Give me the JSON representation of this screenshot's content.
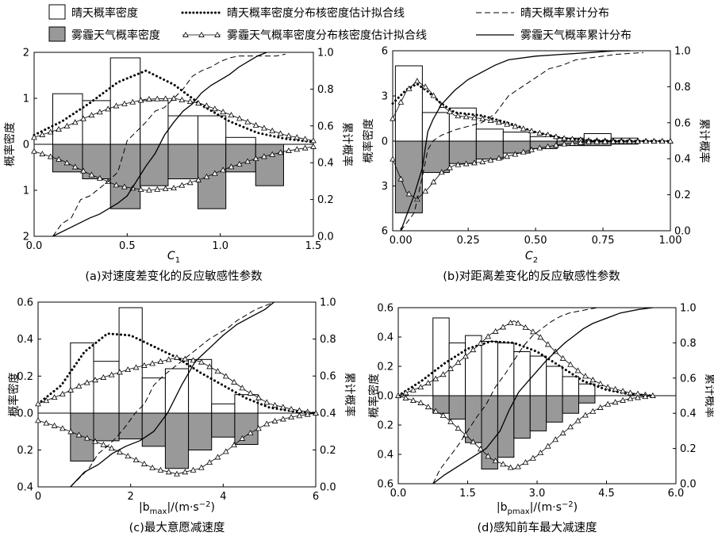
{
  "legend": {
    "items": [
      {
        "key": "clear_hist",
        "label": "晴天概率密度"
      },
      {
        "key": "clear_kde",
        "label": "晴天概率密度分布核密度估计拟合线"
      },
      {
        "key": "clear_cdf",
        "label": "晴天概率累计分布"
      },
      {
        "key": "haze_hist",
        "label": "雾霾天气概率密度"
      },
      {
        "key": "haze_kde",
        "label": "雾霾天气概率密度分布核密度估计拟合线"
      },
      {
        "key": "haze_cdf",
        "label": "雾霾天气概率累计分布"
      }
    ]
  },
  "colors": {
    "haze_fill": "#999999",
    "clear_fill": "#ffffff",
    "line": "#000000",
    "triangle_marker": "#000000"
  },
  "chart_data": [
    {
      "type": "bar",
      "caption": "(a)对速度差变化的反应敏感性参数",
      "xlabel_main": "C",
      "xlabel_sub": "1",
      "ylabel_left": "概率密度",
      "ylabel_right": "累计概率",
      "xlim": [
        0,
        1.5
      ],
      "xticks": [
        "0.0",
        "0.5",
        "1.0",
        "1.5"
      ],
      "xtick_vals": [
        0,
        0.5,
        1.0,
        1.5
      ],
      "ylim_top": 2,
      "ylim_bottom": 2,
      "ytick_labels": [
        "2",
        "1",
        "0",
        "1",
        "2"
      ],
      "ytick_vals": [
        2,
        1,
        0,
        -1,
        -2
      ],
      "right_ticks": [
        "0.0",
        "0.2",
        "0.4",
        "0.6",
        "0.8",
        "1.0"
      ],
      "bin_edges": [
        0.1,
        0.26,
        0.41,
        0.57,
        0.72,
        0.88,
        1.03,
        1.19,
        1.34
      ],
      "clear_density": [
        1.1,
        0.95,
        1.88,
        0.95,
        0.62,
        0.62,
        0.15,
        0.0
      ],
      "haze_density": [
        0.6,
        0.75,
        1.4,
        0.9,
        0.75,
        1.4,
        0.6,
        0.9
      ],
      "clear_kde": {
        "x": [
          0.0,
          0.15,
          0.3,
          0.45,
          0.6,
          0.75,
          0.9,
          1.05,
          1.2,
          1.35,
          1.5
        ],
        "y": [
          0.2,
          0.5,
          0.9,
          1.35,
          1.6,
          1.3,
          0.85,
          0.5,
          0.25,
          0.12,
          0.05
        ]
      },
      "haze_kde": {
        "x": [
          0.0,
          0.15,
          0.3,
          0.45,
          0.6,
          0.75,
          0.9,
          1.05,
          1.2,
          1.35,
          1.5
        ],
        "y": [
          0.12,
          0.25,
          0.5,
          0.9,
          1.0,
          1.0,
          0.85,
          0.6,
          0.3,
          0.2,
          0.1
        ]
      },
      "clear_haze_kde_upper": {
        "x": [
          0.0,
          0.15,
          0.3,
          0.45,
          0.6,
          0.75,
          0.9,
          1.05,
          1.2,
          1.35,
          1.5
        ],
        "y": [
          0.15,
          0.35,
          0.62,
          0.85,
          0.98,
          1.0,
          0.88,
          0.65,
          0.4,
          0.2,
          0.08
        ]
      },
      "haze_kde_lower": {
        "x": [
          0.0,
          0.15,
          0.3,
          0.45,
          0.6,
          0.75,
          0.9,
          1.05,
          1.2,
          1.35,
          1.5
        ],
        "y": [
          0.15,
          0.35,
          0.65,
          0.9,
          1.0,
          0.95,
          0.75,
          0.5,
          0.3,
          0.15,
          0.05
        ]
      },
      "clear_cdf": {
        "x": [
          0.1,
          0.15,
          0.2,
          0.25,
          0.3,
          0.4,
          0.45,
          0.5,
          0.55,
          0.6,
          0.65,
          0.7,
          0.75,
          0.8,
          0.85,
          0.9,
          0.95,
          1.0,
          1.05,
          1.1,
          1.2,
          1.3,
          1.35
        ],
        "y": [
          0.0,
          0.07,
          0.1,
          0.2,
          0.22,
          0.3,
          0.35,
          0.52,
          0.57,
          0.62,
          0.68,
          0.7,
          0.75,
          0.8,
          0.87,
          0.9,
          0.92,
          0.95,
          0.97,
          0.98,
          0.98,
          0.98,
          0.99
        ]
      },
      "haze_cdf": {
        "x": [
          0.1,
          0.2,
          0.3,
          0.35,
          0.4,
          0.45,
          0.5,
          0.55,
          0.6,
          0.65,
          0.7,
          0.75,
          0.8,
          0.85,
          0.9,
          0.95,
          1.0,
          1.05,
          1.1,
          1.15,
          1.2,
          1.25
        ],
        "y": [
          0.0,
          0.05,
          0.1,
          0.12,
          0.15,
          0.18,
          0.22,
          0.3,
          0.38,
          0.45,
          0.55,
          0.62,
          0.68,
          0.72,
          0.78,
          0.82,
          0.85,
          0.88,
          0.92,
          0.95,
          0.98,
          1.0
        ]
      }
    },
    {
      "type": "bar",
      "caption": "(b)对距离差变化的反应敏感性参数",
      "xlabel_main": "C",
      "xlabel_sub": "2",
      "ylabel_left": "概率密度",
      "ylabel_right": "累计概率",
      "xlim": [
        -0.03,
        1.0
      ],
      "xticks": [
        "0.00",
        "0.25",
        "0.50",
        "0.75",
        "1.00"
      ],
      "xtick_vals": [
        0,
        0.25,
        0.5,
        0.75,
        1.0
      ],
      "ylim_top": 6,
      "ylim_bottom": 6,
      "ytick_labels": [
        "6",
        "3",
        "0",
        "3",
        "6"
      ],
      "ytick_vals": [
        6,
        3,
        0,
        -3,
        -6
      ],
      "right_ticks": [
        "0.0",
        "0.2",
        "0.4",
        "0.6",
        "0.8",
        "1.0"
      ],
      "bin_edges": [
        -0.02,
        0.08,
        0.18,
        0.28,
        0.38,
        0.48,
        0.58,
        0.68,
        0.78,
        0.88
      ],
      "clear_density": [
        5.0,
        1.9,
        2.2,
        0.8,
        0.6,
        0.3,
        0.2,
        0.5,
        0.2
      ],
      "haze_density": [
        4.8,
        2.1,
        1.5,
        1.2,
        0.8,
        0.5,
        0.3,
        0.3,
        0.2
      ],
      "clear_kde": {
        "x": [
          -0.03,
          0.02,
          0.06,
          0.1,
          0.15,
          0.2,
          0.3,
          0.4,
          0.5,
          0.6,
          0.7,
          0.8,
          0.9,
          1.0
        ],
        "y": [
          2.5,
          3.4,
          3.8,
          3.3,
          2.5,
          1.9,
          1.7,
          1.2,
          0.6,
          0.2,
          0.05,
          0.02,
          0.01,
          0.0
        ]
      },
      "haze_kde": {
        "x": [
          -0.03,
          0.02,
          0.06,
          0.1,
          0.15,
          0.2,
          0.3,
          0.4,
          0.5,
          0.6,
          0.7,
          0.8,
          0.9,
          1.0
        ],
        "y": [
          1.5,
          3.3,
          4.0,
          3.5,
          2.4,
          1.7,
          1.5,
          1.1,
          0.6,
          0.2,
          0.05,
          0.02,
          0.01,
          0.0
        ]
      },
      "haze_kde_lower": {
        "x": [
          -0.03,
          0.02,
          0.06,
          0.1,
          0.15,
          0.2,
          0.3,
          0.4,
          0.5,
          0.6,
          0.7,
          0.8,
          0.9,
          1.0
        ],
        "y": [
          1.2,
          3.4,
          3.9,
          3.2,
          2.1,
          1.6,
          1.4,
          1.0,
          0.5,
          0.2,
          0.05,
          0.02,
          0.01,
          0.0
        ]
      },
      "clear_cdf": {
        "x": [
          0.0,
          0.05,
          0.08,
          0.1,
          0.12,
          0.15,
          0.2,
          0.25,
          0.3,
          0.35,
          0.4,
          0.45,
          0.5,
          0.55,
          0.6,
          0.65,
          0.7,
          0.75,
          0.8,
          0.9
        ],
        "y": [
          0.0,
          0.1,
          0.3,
          0.45,
          0.5,
          0.53,
          0.56,
          0.58,
          0.6,
          0.65,
          0.75,
          0.8,
          0.85,
          0.9,
          0.92,
          0.95,
          0.96,
          0.97,
          0.98,
          0.99
        ]
      },
      "haze_cdf": {
        "x": [
          0.0,
          0.05,
          0.08,
          0.1,
          0.12,
          0.15,
          0.2,
          0.25,
          0.3,
          0.35,
          0.4,
          0.5,
          0.6,
          0.7,
          0.8,
          0.85
        ],
        "y": [
          0.0,
          0.2,
          0.35,
          0.55,
          0.62,
          0.7,
          0.78,
          0.84,
          0.88,
          0.92,
          0.95,
          0.97,
          0.98,
          0.99,
          1.0,
          1.0
        ]
      }
    },
    {
      "type": "bar",
      "caption": "(c)最大意愿减速度",
      "xlabel_main": "|b",
      "xlabel_sub": "max",
      "xlabel_tail": "|/(m·s",
      "xlabel_sup": "−2",
      "xlabel_end": ")",
      "ylabel_left": "概率密度",
      "ylabel_right": "累计概率",
      "xlim": [
        0,
        6
      ],
      "xticks": [
        "0",
        "2",
        "4",
        "6"
      ],
      "xtick_vals": [
        0,
        2,
        4,
        6
      ],
      "ylim_top": 0.6,
      "ylim_bottom": 0.4,
      "ytick_labels": [
        "0.6",
        "0.4",
        "0.2",
        "0.0",
        "0.2",
        "0.4"
      ],
      "ytick_vals": [
        0.6,
        0.4,
        0.2,
        0,
        -0.2,
        -0.4
      ],
      "right_ticks": [
        "0.0",
        "0.2",
        "0.4",
        "0.6",
        "0.8",
        "1.0"
      ],
      "bin_edges": [
        0.7,
        1.2,
        1.75,
        2.25,
        2.75,
        3.25,
        3.75,
        4.25,
        4.75
      ],
      "clear_density": [
        0.38,
        0.28,
        0.57,
        0.19,
        0.24,
        0.29,
        0.05,
        0.1
      ],
      "haze_density": [
        0.26,
        0.15,
        0.14,
        0.18,
        0.3,
        0.2,
        0.13,
        0.17
      ],
      "clear_kde": {
        "x": [
          0,
          0.5,
          1,
          1.5,
          2,
          2.5,
          3,
          3.5,
          4,
          4.5,
          5,
          5.5,
          6
        ],
        "y": [
          0.05,
          0.15,
          0.33,
          0.43,
          0.42,
          0.36,
          0.3,
          0.22,
          0.15,
          0.08,
          0.03,
          0.01,
          0.0
        ]
      },
      "haze_kde": {
        "x": [
          0,
          0.5,
          1,
          1.5,
          2,
          2.5,
          3,
          3.5,
          4,
          4.5,
          5,
          5.5,
          6
        ],
        "y": [
          0.05,
          0.1,
          0.16,
          0.2,
          0.24,
          0.27,
          0.3,
          0.28,
          0.21,
          0.12,
          0.05,
          0.02,
          0.0
        ]
      },
      "haze_kde_lower": {
        "x": [
          0,
          0.5,
          1,
          1.5,
          2,
          2.5,
          3,
          3.5,
          4,
          4.5,
          5,
          5.5,
          6
        ],
        "y": [
          0.04,
          0.08,
          0.13,
          0.18,
          0.24,
          0.3,
          0.33,
          0.3,
          0.22,
          0.12,
          0.05,
          0.02,
          0.0
        ]
      },
      "clear_cdf": {
        "x": [
          0.7,
          0.9,
          1.1,
          1.3,
          1.5,
          1.7,
          1.9,
          2.1,
          2.3,
          2.5,
          2.7,
          2.9,
          3.1,
          3.3,
          3.5,
          3.7,
          3.9,
          4.1,
          4.3,
          4.5,
          4.7,
          4.9,
          5.1
        ],
        "y": [
          0.0,
          0.05,
          0.1,
          0.18,
          0.22,
          0.27,
          0.33,
          0.4,
          0.45,
          0.55,
          0.6,
          0.64,
          0.68,
          0.72,
          0.76,
          0.8,
          0.83,
          0.86,
          0.9,
          0.93,
          0.96,
          0.98,
          1.0
        ]
      },
      "haze_cdf": {
        "x": [
          0.7,
          1.0,
          1.3,
          1.6,
          1.9,
          2.2,
          2.5,
          2.8,
          3.1,
          3.4,
          3.7,
          4.0,
          4.3,
          4.6,
          4.9,
          5.1
        ],
        "y": [
          0.0,
          0.08,
          0.12,
          0.18,
          0.22,
          0.25,
          0.3,
          0.4,
          0.55,
          0.68,
          0.75,
          0.82,
          0.88,
          0.92,
          0.96,
          1.0
        ]
      }
    },
    {
      "type": "bar",
      "caption": "(d)感知前车最大减速度",
      "xlabel_main": "|b",
      "xlabel_sub": "pmax",
      "xlabel_tail": "|/(m·s",
      "xlabel_sup": "−2",
      "xlabel_end": ")",
      "ylabel_left": "概率密度",
      "ylabel_right": "累计概率",
      "xlim": [
        0,
        6
      ],
      "xticks": [
        "0.0",
        "1.5",
        "3.0",
        "4.5",
        "6.0"
      ],
      "xtick_vals": [
        0,
        1.5,
        3,
        4.5,
        6
      ],
      "ylim_top": 0.6,
      "ylim_bottom": 0.6,
      "ytick_labels": [
        "0.6",
        "0.4",
        "0.2",
        "0.0",
        "0.2",
        "0.4",
        "0.6"
      ],
      "ytick_vals": [
        0.6,
        0.4,
        0.2,
        0,
        -0.2,
        -0.4,
        -0.6
      ],
      "right_ticks": [
        "0.0",
        "0.2",
        "0.4",
        "0.6",
        "0.8",
        "1.0"
      ],
      "bin_edges": [
        0.75,
        1.1,
        1.45,
        1.8,
        2.15,
        2.5,
        2.85,
        3.2,
        3.55,
        3.9,
        4.25
      ],
      "clear_density": [
        0.53,
        0.36,
        0.41,
        0.37,
        0.36,
        0.3,
        0.27,
        0.2,
        0.13,
        0.08
      ],
      "haze_density": [
        0.12,
        0.16,
        0.32,
        0.5,
        0.42,
        0.29,
        0.24,
        0.18,
        0.12,
        0.05
      ],
      "clear_kde": {
        "x": [
          0,
          0.5,
          1,
          1.5,
          2,
          2.5,
          3,
          3.5,
          4,
          4.5,
          5,
          5.5
        ],
        "y": [
          0.0,
          0.1,
          0.22,
          0.32,
          0.37,
          0.36,
          0.3,
          0.2,
          0.1,
          0.04,
          0.01,
          0.0
        ]
      },
      "haze_kde": {
        "x": [
          0,
          0.5,
          1,
          1.5,
          2,
          2.5,
          3,
          3.5,
          4,
          4.5,
          5,
          5.5
        ],
        "y": [
          0.0,
          0.06,
          0.15,
          0.28,
          0.42,
          0.51,
          0.42,
          0.27,
          0.14,
          0.06,
          0.02,
          0.0
        ]
      },
      "haze_kde_lower": {
        "x": [
          0,
          0.5,
          1,
          1.5,
          2,
          2.5,
          3,
          3.5,
          4,
          4.5,
          5,
          5.5
        ],
        "y": [
          0.0,
          0.05,
          0.14,
          0.28,
          0.43,
          0.5,
          0.41,
          0.27,
          0.14,
          0.06,
          0.02,
          0.0
        ]
      },
      "clear_cdf": {
        "x": [
          0.75,
          0.9,
          1.1,
          1.3,
          1.5,
          1.7,
          1.9,
          2.1,
          2.3,
          2.5,
          2.7,
          2.9,
          3.1,
          3.3,
          3.5,
          3.7,
          3.9,
          4.1,
          4.3
        ],
        "y": [
          0.0,
          0.08,
          0.15,
          0.22,
          0.3,
          0.38,
          0.45,
          0.55,
          0.62,
          0.7,
          0.78,
          0.84,
          0.88,
          0.92,
          0.95,
          0.97,
          0.98,
          0.99,
          1.0
        ]
      },
      "haze_cdf": {
        "x": [
          0.75,
          1.0,
          1.3,
          1.6,
          1.9,
          2.2,
          2.4,
          2.6,
          2.8,
          3.0,
          3.2,
          3.4,
          3.6,
          3.8,
          4.0,
          4.2,
          4.4,
          4.6,
          4.8,
          5.2,
          5.5
        ],
        "y": [
          0.0,
          0.05,
          0.1,
          0.15,
          0.2,
          0.3,
          0.42,
          0.52,
          0.58,
          0.64,
          0.7,
          0.75,
          0.8,
          0.84,
          0.88,
          0.91,
          0.93,
          0.95,
          0.97,
          0.99,
          1.0
        ]
      }
    }
  ]
}
